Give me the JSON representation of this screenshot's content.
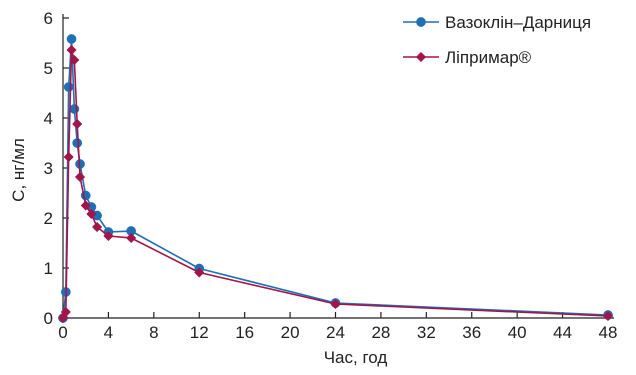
{
  "chart_data": {
    "type": "line",
    "title": "",
    "xlabel": "Час,  год",
    "ylabel": "C, нг/мл",
    "xlim": [
      0,
      48
    ],
    "ylim": [
      0,
      6
    ],
    "x_ticks": [
      0,
      4,
      8,
      12,
      16,
      20,
      24,
      28,
      32,
      36,
      40,
      44,
      48
    ],
    "y_ticks": [
      0,
      1,
      2,
      3,
      4,
      5,
      6
    ],
    "grid": false,
    "legend_position": "top-right",
    "series": [
      {
        "name": "Вазоклін–Дарниця",
        "color": "#1f6fb5",
        "marker": "circle",
        "points": [
          [
            0,
            0.0
          ],
          [
            0.25,
            0.52
          ],
          [
            0.5,
            4.62
          ],
          [
            0.75,
            5.58
          ],
          [
            1.0,
            4.18
          ],
          [
            1.25,
            3.5
          ],
          [
            1.5,
            3.08
          ],
          [
            2.0,
            2.45
          ],
          [
            2.5,
            2.22
          ],
          [
            3.0,
            2.05
          ],
          [
            4.0,
            1.72
          ],
          [
            6.0,
            1.74
          ],
          [
            12.0,
            0.99
          ],
          [
            24.0,
            0.3
          ],
          [
            48.0,
            0.06
          ]
        ]
      },
      {
        "name": "Ліпримар®",
        "color": "#a3154a",
        "marker": "diamond",
        "points": [
          [
            0,
            0.0
          ],
          [
            0.25,
            0.12
          ],
          [
            0.5,
            3.22
          ],
          [
            0.75,
            5.36
          ],
          [
            1.0,
            5.16
          ],
          [
            1.25,
            3.88
          ],
          [
            1.5,
            2.82
          ],
          [
            2.0,
            2.25
          ],
          [
            2.5,
            2.08
          ],
          [
            3.0,
            1.82
          ],
          [
            4.0,
            1.64
          ],
          [
            6.0,
            1.6
          ],
          [
            12.0,
            0.91
          ],
          [
            24.0,
            0.28
          ],
          [
            48.0,
            0.04
          ]
        ]
      }
    ]
  }
}
